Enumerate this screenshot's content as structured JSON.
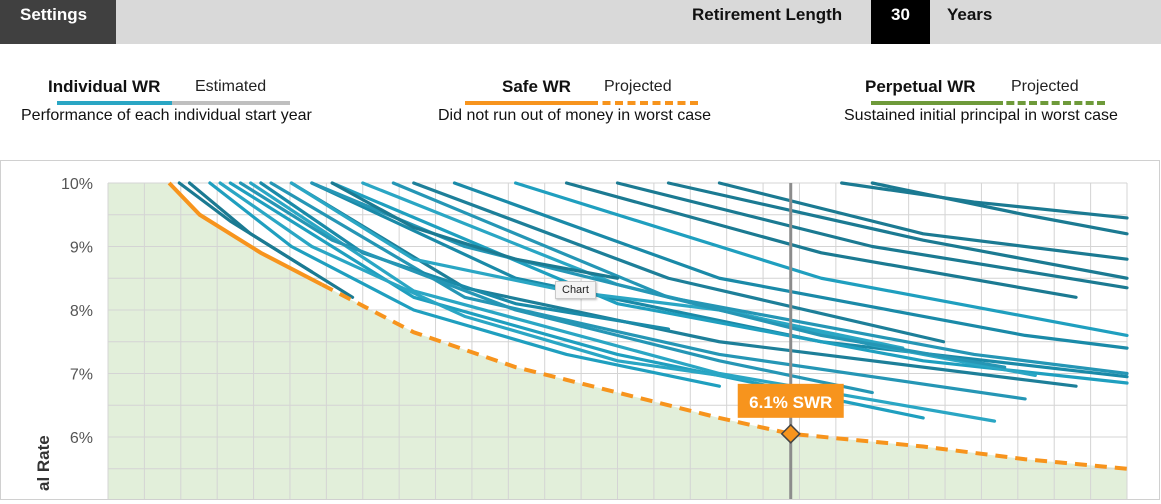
{
  "topbar": {
    "settings_label": "Settings",
    "retirement_length_label": "Retirement Length",
    "retirement_length_value": "30",
    "retirement_length_unit": "Years"
  },
  "legend": {
    "individual": {
      "title": "Individual WR",
      "sub": "Estimated",
      "desc": "Performance of each individual start year",
      "color": "#2aa6c4",
      "alt_color": "#bfbfbf"
    },
    "safe": {
      "title": "Safe WR",
      "sub": "Projected",
      "desc": "Did not run out of money in worst case",
      "color": "#f7941d"
    },
    "perpetual": {
      "title": "Perpetual WR",
      "sub": "Projected",
      "desc": "Sustained initial principal in worst case",
      "color": "#6e9a3a"
    }
  },
  "tooltip": "Chart",
  "chart_data": {
    "type": "line",
    "ylabel": "al Rate",
    "y_ticks": [
      "10%",
      "9%",
      "8%",
      "7%",
      "6%"
    ],
    "ylim": [
      5.3,
      10
    ],
    "xlim": [
      0,
      1
    ],
    "grid": true,
    "marker": {
      "x": 0.67,
      "y": 6.05,
      "label": "6.1% SWR"
    },
    "swr_line": {
      "x": [
        0.06,
        0.09,
        0.15,
        0.21,
        0.3,
        0.4,
        0.5,
        0.6,
        0.67,
        0.8,
        0.9,
        1.0
      ],
      "y": [
        10,
        9.5,
        8.9,
        8.4,
        7.65,
        7.1,
        6.7,
        6.3,
        6.05,
        5.85,
        5.65,
        5.5
      ]
    },
    "series": [
      {
        "x": [
          0.12,
          0.3,
          0.5,
          0.8
        ],
        "y": [
          10,
          8.2,
          7.3,
          6.3
        ]
      },
      {
        "x": [
          0.14,
          0.3,
          0.6,
          0.87
        ],
        "y": [
          10,
          8.3,
          7.0,
          6.25
        ]
      },
      {
        "x": [
          0.16,
          0.35,
          0.6,
          0.9
        ],
        "y": [
          10,
          8.2,
          7.3,
          6.6
        ]
      },
      {
        "x": [
          0.18,
          0.35,
          0.6,
          0.95
        ],
        "y": [
          10,
          8.35,
          7.5,
          6.8
        ]
      },
      {
        "x": [
          0.2,
          0.4,
          0.7,
          1.0
        ],
        "y": [
          10,
          8.5,
          7.5,
          6.95
        ]
      },
      {
        "x": [
          0.22,
          0.5,
          0.8,
          1.0
        ],
        "y": [
          10,
          8.1,
          7.2,
          6.85
        ]
      },
      {
        "x": [
          0.25,
          0.5,
          0.75,
          0.91
        ],
        "y": [
          10,
          8.4,
          7.45,
          6.97
        ]
      },
      {
        "x": [
          0.28,
          0.55,
          0.85,
          1.0
        ],
        "y": [
          10,
          8.2,
          7.3,
          7.0
        ]
      },
      {
        "x": [
          0.3,
          0.55,
          0.82
        ],
        "y": [
          10,
          8.5,
          7.5
        ]
      },
      {
        "x": [
          0.34,
          0.6,
          0.9,
          1.0
        ],
        "y": [
          10,
          8.5,
          7.6,
          7.4
        ]
      },
      {
        "x": [
          0.4,
          0.7,
          1.0
        ],
        "y": [
          10,
          8.5,
          7.6
        ]
      },
      {
        "x": [
          0.45,
          0.7,
          0.95
        ],
        "y": [
          10,
          8.9,
          8.2
        ]
      },
      {
        "x": [
          0.5,
          0.75,
          1.0
        ],
        "y": [
          10,
          9.0,
          8.35
        ]
      },
      {
        "x": [
          0.55,
          0.8,
          1.0
        ],
        "y": [
          10,
          9.1,
          8.5
        ]
      },
      {
        "x": [
          0.6,
          0.8,
          1.0
        ],
        "y": [
          10,
          9.2,
          8.8
        ]
      },
      {
        "x": [
          0.75,
          0.9,
          1.0
        ],
        "y": [
          10,
          9.5,
          9.2
        ]
      },
      {
        "x": [
          0.18,
          0.3,
          0.45,
          0.6,
          0.78
        ],
        "y": [
          10,
          8.8,
          8.3,
          8.0,
          7.4
        ]
      },
      {
        "x": [
          0.2,
          0.35,
          0.5,
          0.7,
          0.88
        ],
        "y": [
          10,
          9.0,
          8.4,
          7.6,
          7.1
        ]
      },
      {
        "x": [
          0.22,
          0.3,
          0.4,
          0.5
        ],
        "y": [
          10,
          9.3,
          8.8,
          8.5
        ]
      },
      {
        "x": [
          0.15,
          0.25,
          0.4,
          0.55
        ],
        "y": [
          10,
          8.9,
          8.1,
          7.7
        ]
      },
      {
        "x": [
          0.1,
          0.18,
          0.3,
          0.45,
          0.6
        ],
        "y": [
          10,
          9.0,
          8.0,
          7.3,
          6.8
        ]
      },
      {
        "x": [
          0.11,
          0.2,
          0.35,
          0.5,
          0.63
        ],
        "y": [
          10,
          9.0,
          7.9,
          7.2,
          6.9
        ]
      },
      {
        "x": [
          0.13,
          0.22,
          0.4,
          0.6,
          0.75
        ],
        "y": [
          10,
          9.1,
          8.0,
          7.2,
          6.7
        ]
      },
      {
        "x": [
          0.07,
          0.12,
          0.2
        ],
        "y": [
          10,
          9.4,
          8.6
        ]
      },
      {
        "x": [
          0.08,
          0.14,
          0.24
        ],
        "y": [
          10,
          9.2,
          8.2
        ]
      },
      {
        "x": [
          0.72,
          0.85,
          1.0
        ],
        "y": [
          10,
          9.7,
          9.45
        ]
      }
    ]
  }
}
